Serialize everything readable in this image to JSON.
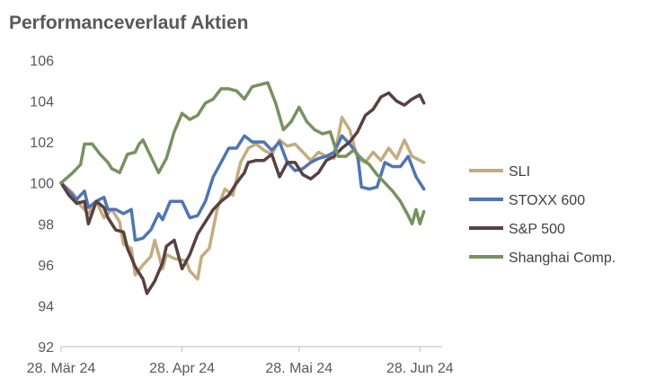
{
  "chart_data": {
    "type": "line",
    "title": "Performanceverlauf Aktien",
    "xlabel": "",
    "ylabel": "",
    "ylim": [
      92,
      106
    ],
    "yticks": [
      92,
      94,
      96,
      98,
      100,
      102,
      104,
      106
    ],
    "xticks": [
      {
        "label": "28. Mär 24",
        "x": 0
      },
      {
        "label": "28. Apr 24",
        "x": 31
      },
      {
        "label": "28. Mai 24",
        "x": 61
      },
      {
        "label": "28. Jun 24",
        "x": 92
      }
    ],
    "xlim": [
      0,
      94
    ],
    "grid": false,
    "legend_position": "right",
    "series": [
      {
        "name": "SLI",
        "color": "#C4AC7E",
        "points": [
          [
            0,
            100
          ],
          [
            3,
            99.5
          ],
          [
            5,
            98.9
          ],
          [
            7,
            98.5
          ],
          [
            9,
            99.1
          ],
          [
            11,
            98.3
          ],
          [
            13,
            98.7
          ],
          [
            15,
            98.1
          ],
          [
            16,
            97
          ],
          [
            18,
            96.8
          ],
          [
            19,
            95.5
          ],
          [
            21,
            96
          ],
          [
            23,
            96.4
          ],
          [
            24,
            97.2
          ],
          [
            26,
            95.8
          ],
          [
            27,
            96.5
          ],
          [
            29,
            96.3
          ],
          [
            32,
            96.2
          ],
          [
            33,
            95.7
          ],
          [
            35,
            95.3
          ],
          [
            36,
            96.4
          ],
          [
            38,
            96.8
          ],
          [
            40,
            98.7
          ],
          [
            42,
            99.7
          ],
          [
            44,
            99.4
          ],
          [
            46,
            101
          ],
          [
            48,
            101.7
          ],
          [
            50,
            101.9
          ],
          [
            52,
            101.6
          ],
          [
            54,
            101.4
          ],
          [
            56,
            102.1
          ],
          [
            58,
            101.8
          ],
          [
            60,
            101.9
          ],
          [
            62,
            101.5
          ],
          [
            64,
            101.1
          ],
          [
            66,
            101.5
          ],
          [
            68,
            101.3
          ],
          [
            70,
            101.2
          ],
          [
            72,
            103.2
          ],
          [
            74,
            102.6
          ],
          [
            76,
            101.2
          ],
          [
            78,
            101
          ],
          [
            80,
            101.5
          ],
          [
            82,
            101.1
          ],
          [
            84,
            101.7
          ],
          [
            86,
            101.2
          ],
          [
            88,
            102.1
          ],
          [
            90,
            101.3
          ],
          [
            92,
            101.1
          ],
          [
            93,
            101
          ]
        ]
      },
      {
        "name": "STOXX 600",
        "color": "#4F75B3",
        "points": [
          [
            0,
            100
          ],
          [
            2,
            99.6
          ],
          [
            4,
            99.2
          ],
          [
            6,
            99.6
          ],
          [
            7,
            98.8
          ],
          [
            9,
            99.1
          ],
          [
            11,
            99.3
          ],
          [
            12,
            98.7
          ],
          [
            14,
            98.7
          ],
          [
            16,
            98.5
          ],
          [
            18,
            98.7
          ],
          [
            19,
            97.2
          ],
          [
            21,
            97.3
          ],
          [
            23,
            97.7
          ],
          [
            25,
            98.5
          ],
          [
            26,
            98.2
          ],
          [
            28,
            99.1
          ],
          [
            31,
            99.1
          ],
          [
            33,
            98.3
          ],
          [
            35,
            98.4
          ],
          [
            37,
            99.1
          ],
          [
            39,
            100.3
          ],
          [
            41,
            101
          ],
          [
            43,
            101.7
          ],
          [
            45,
            101.7
          ],
          [
            47,
            102.3
          ],
          [
            49,
            102
          ],
          [
            52,
            102
          ],
          [
            54,
            101.6
          ],
          [
            56,
            102
          ],
          [
            58,
            101
          ],
          [
            60,
            100.6
          ],
          [
            62,
            100.7
          ],
          [
            64,
            101
          ],
          [
            66,
            101.2
          ],
          [
            68,
            101.3
          ],
          [
            70,
            101.5
          ],
          [
            72,
            102.3
          ],
          [
            74,
            101.9
          ],
          [
            76,
            101.4
          ],
          [
            77,
            99.8
          ],
          [
            79,
            99.7
          ],
          [
            81,
            99.8
          ],
          [
            83,
            101
          ],
          [
            85,
            100.8
          ],
          [
            87,
            100.8
          ],
          [
            89,
            101.3
          ],
          [
            91,
            100.3
          ],
          [
            93,
            99.7
          ]
        ]
      },
      {
        "name": "S&P 500",
        "color": "#584140",
        "points": [
          [
            0,
            100
          ],
          [
            2,
            99.4
          ],
          [
            4,
            99
          ],
          [
            6,
            99.1
          ],
          [
            7,
            98
          ],
          [
            9,
            99.1
          ],
          [
            11,
            98.8
          ],
          [
            12,
            98.3
          ],
          [
            14,
            97.7
          ],
          [
            16,
            97.6
          ],
          [
            17,
            96.8
          ],
          [
            19,
            95.9
          ],
          [
            21,
            95.3
          ],
          [
            22,
            94.6
          ],
          [
            24,
            95.2
          ],
          [
            26,
            96.1
          ],
          [
            27,
            96.9
          ],
          [
            29,
            97.2
          ],
          [
            31,
            95.8
          ],
          [
            33,
            96.5
          ],
          [
            35,
            97.5
          ],
          [
            37,
            98.1
          ],
          [
            39,
            98.7
          ],
          [
            41,
            99.1
          ],
          [
            43,
            99.4
          ],
          [
            45,
            100
          ],
          [
            47,
            100.5
          ],
          [
            48,
            101
          ],
          [
            50,
            101.1
          ],
          [
            52,
            101.1
          ],
          [
            54,
            101.4
          ],
          [
            56,
            100.3
          ],
          [
            58,
            101
          ],
          [
            60,
            101
          ],
          [
            62,
            100.4
          ],
          [
            64,
            100.2
          ],
          [
            66,
            100.5
          ],
          [
            68,
            101.1
          ],
          [
            70,
            101.3
          ],
          [
            72,
            101.7
          ],
          [
            74,
            102
          ],
          [
            76,
            102.5
          ],
          [
            78,
            103.3
          ],
          [
            80,
            103.6
          ],
          [
            82,
            104.2
          ],
          [
            84,
            104.4
          ],
          [
            86,
            104
          ],
          [
            88,
            103.8
          ],
          [
            90,
            104.1
          ],
          [
            92,
            104.3
          ],
          [
            93,
            103.9
          ]
        ]
      },
      {
        "name": "Shanghai Comp.",
        "color": "#76925F",
        "points": [
          [
            0,
            100
          ],
          [
            3,
            100.5
          ],
          [
            5,
            100.9
          ],
          [
            6,
            101.9
          ],
          [
            8,
            101.9
          ],
          [
            10,
            101.4
          ],
          [
            12,
            101
          ],
          [
            13,
            100.7
          ],
          [
            15,
            100.5
          ],
          [
            17,
            101.4
          ],
          [
            19,
            101.5
          ],
          [
            20,
            101.9
          ],
          [
            21,
            102.1
          ],
          [
            23,
            101.3
          ],
          [
            25,
            100.5
          ],
          [
            27,
            101.2
          ],
          [
            29,
            102.5
          ],
          [
            31,
            103.4
          ],
          [
            33,
            103.1
          ],
          [
            35,
            103.3
          ],
          [
            37,
            103.9
          ],
          [
            39,
            104.1
          ],
          [
            41,
            104.6
          ],
          [
            43,
            104.6
          ],
          [
            45,
            104.5
          ],
          [
            47,
            104.1
          ],
          [
            49,
            104.7
          ],
          [
            51,
            104.8
          ],
          [
            53,
            104.9
          ],
          [
            55,
            103.9
          ],
          [
            57,
            102.6
          ],
          [
            59,
            103
          ],
          [
            61,
            103.7
          ],
          [
            63,
            103
          ],
          [
            65,
            102.6
          ],
          [
            67,
            102.4
          ],
          [
            69,
            102.5
          ],
          [
            71,
            101.3
          ],
          [
            73,
            101.3
          ],
          [
            75,
            101.6
          ],
          [
            77,
            101.2
          ],
          [
            79,
            100.9
          ],
          [
            81,
            100.4
          ],
          [
            83,
            100
          ],
          [
            85,
            99.6
          ],
          [
            87,
            99.1
          ],
          [
            89,
            98.4
          ],
          [
            90,
            98
          ],
          [
            91,
            98.7
          ],
          [
            92,
            98
          ],
          [
            93,
            98.6
          ]
        ]
      }
    ]
  }
}
